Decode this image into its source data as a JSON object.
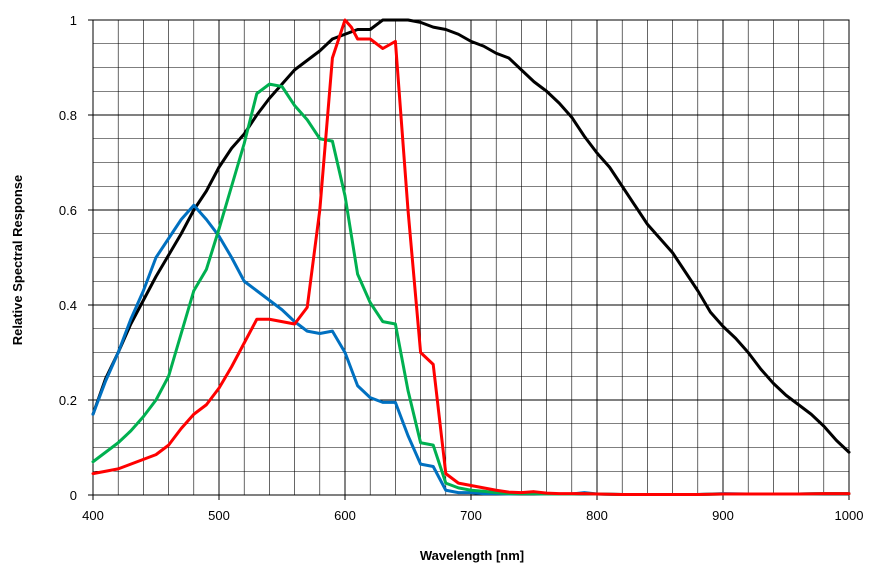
{
  "chart_data": {
    "type": "line",
    "title": "",
    "xlabel": "Wavelength [nm]",
    "ylabel": "Relative Spectral Response",
    "xlim": [
      400,
      1000
    ],
    "ylim": [
      0,
      1
    ],
    "x_ticks": [
      400,
      500,
      600,
      700,
      800,
      900,
      1000
    ],
    "x_tick_labels": [
      "400",
      "500",
      "600",
      "700",
      "800",
      "900",
      "1000"
    ],
    "y_ticks": [
      0,
      0.2,
      0.4,
      0.6,
      0.8,
      1
    ],
    "y_tick_labels": [
      "0",
      "0.2",
      "0.4",
      "0.6",
      "0.8",
      "1"
    ],
    "grid": true,
    "minor_x_step": 20,
    "minor_y_step": 0.05,
    "legend": "none",
    "series": [
      {
        "color": "#000000",
        "x": [
          400,
          410,
          420,
          430,
          440,
          450,
          460,
          470,
          480,
          490,
          500,
          510,
          520,
          530,
          540,
          550,
          560,
          570,
          580,
          590,
          600,
          610,
          620,
          630,
          640,
          650,
          660,
          670,
          680,
          690,
          700,
          710,
          720,
          730,
          740,
          750,
          760,
          770,
          780,
          790,
          800,
          810,
          820,
          830,
          840,
          850,
          860,
          870,
          880,
          890,
          900,
          910,
          920,
          930,
          940,
          950,
          960,
          970,
          980,
          990,
          1000
        ],
        "y": [
          0.17,
          0.245,
          0.3,
          0.36,
          0.41,
          0.46,
          0.505,
          0.55,
          0.6,
          0.64,
          0.69,
          0.73,
          0.76,
          0.8,
          0.835,
          0.865,
          0.895,
          0.915,
          0.935,
          0.96,
          0.97,
          0.98,
          0.98,
          1.0,
          1.0,
          1.0,
          0.995,
          0.985,
          0.98,
          0.97,
          0.955,
          0.945,
          0.93,
          0.92,
          0.895,
          0.87,
          0.85,
          0.825,
          0.795,
          0.755,
          0.72,
          0.69,
          0.65,
          0.61,
          0.57,
          0.54,
          0.51,
          0.47,
          0.43,
          0.385,
          0.355,
          0.33,
          0.3,
          0.265,
          0.235,
          0.21,
          0.19,
          0.17,
          0.145,
          0.115,
          0.09
        ]
      },
      {
        "color": "#0070c0",
        "x": [
          400,
          410,
          420,
          430,
          440,
          450,
          460,
          470,
          480,
          490,
          500,
          510,
          520,
          530,
          540,
          550,
          560,
          570,
          580,
          590,
          600,
          610,
          620,
          630,
          640,
          650,
          660,
          670,
          680,
          690,
          700,
          710,
          720,
          730,
          740,
          750,
          760,
          770,
          780,
          790,
          800,
          820,
          840,
          860,
          880,
          900,
          920,
          940,
          960,
          980,
          1000
        ],
        "y": [
          0.17,
          0.24,
          0.3,
          0.37,
          0.43,
          0.5,
          0.54,
          0.58,
          0.61,
          0.58,
          0.545,
          0.5,
          0.45,
          0.43,
          0.41,
          0.39,
          0.365,
          0.345,
          0.34,
          0.345,
          0.3,
          0.23,
          0.205,
          0.195,
          0.195,
          0.125,
          0.065,
          0.06,
          0.01,
          0.005,
          0.005,
          0.003,
          0.003,
          0.002,
          0.003,
          0.003,
          0.002,
          0.002,
          0.002,
          0.005,
          0.002,
          0.001,
          0.001,
          0.001,
          0.001,
          0.003,
          0.002,
          0.002,
          0.002,
          0.003,
          0.003
        ]
      },
      {
        "color": "#00b050",
        "x": [
          400,
          410,
          420,
          430,
          440,
          450,
          460,
          470,
          480,
          490,
          500,
          510,
          520,
          530,
          540,
          550,
          560,
          570,
          580,
          590,
          600,
          610,
          620,
          630,
          640,
          650,
          660,
          670,
          680,
          690,
          700,
          710,
          720,
          730,
          740,
          750,
          760,
          770,
          780,
          790,
          800,
          820,
          840,
          860,
          880,
          900,
          920,
          940,
          960,
          980,
          1000
        ],
        "y": [
          0.07,
          0.09,
          0.11,
          0.135,
          0.165,
          0.2,
          0.25,
          0.34,
          0.43,
          0.475,
          0.56,
          0.65,
          0.74,
          0.845,
          0.865,
          0.86,
          0.82,
          0.79,
          0.75,
          0.745,
          0.63,
          0.465,
          0.405,
          0.365,
          0.36,
          0.22,
          0.11,
          0.105,
          0.025,
          0.015,
          0.01,
          0.008,
          0.005,
          0.003,
          0.003,
          0.003,
          0.002,
          0.002,
          0.002,
          0.003,
          0.002,
          0.001,
          0.001,
          0.001,
          0.001,
          0.002,
          0.002,
          0.002,
          0.002,
          0.003,
          0.003
        ]
      },
      {
        "color": "#ff0000",
        "x": [
          400,
          410,
          420,
          430,
          440,
          450,
          460,
          470,
          480,
          490,
          500,
          510,
          520,
          530,
          540,
          550,
          560,
          570,
          580,
          590,
          600,
          605,
          610,
          620,
          630,
          640,
          650,
          660,
          670,
          680,
          690,
          700,
          710,
          720,
          730,
          740,
          750,
          760,
          770,
          780,
          790,
          800,
          820,
          840,
          860,
          880,
          900,
          920,
          940,
          960,
          980,
          1000
        ],
        "y": [
          0.045,
          0.05,
          0.055,
          0.065,
          0.075,
          0.085,
          0.105,
          0.14,
          0.17,
          0.19,
          0.225,
          0.27,
          0.32,
          0.37,
          0.37,
          0.365,
          0.36,
          0.395,
          0.6,
          0.92,
          1.0,
          0.985,
          0.96,
          0.96,
          0.94,
          0.955,
          0.6,
          0.3,
          0.275,
          0.045,
          0.025,
          0.02,
          0.015,
          0.01,
          0.006,
          0.005,
          0.007,
          0.004,
          0.003,
          0.003,
          0.003,
          0.002,
          0.001,
          0.001,
          0.001,
          0.001,
          0.002,
          0.002,
          0.002,
          0.002,
          0.003,
          0.003
        ]
      }
    ]
  }
}
